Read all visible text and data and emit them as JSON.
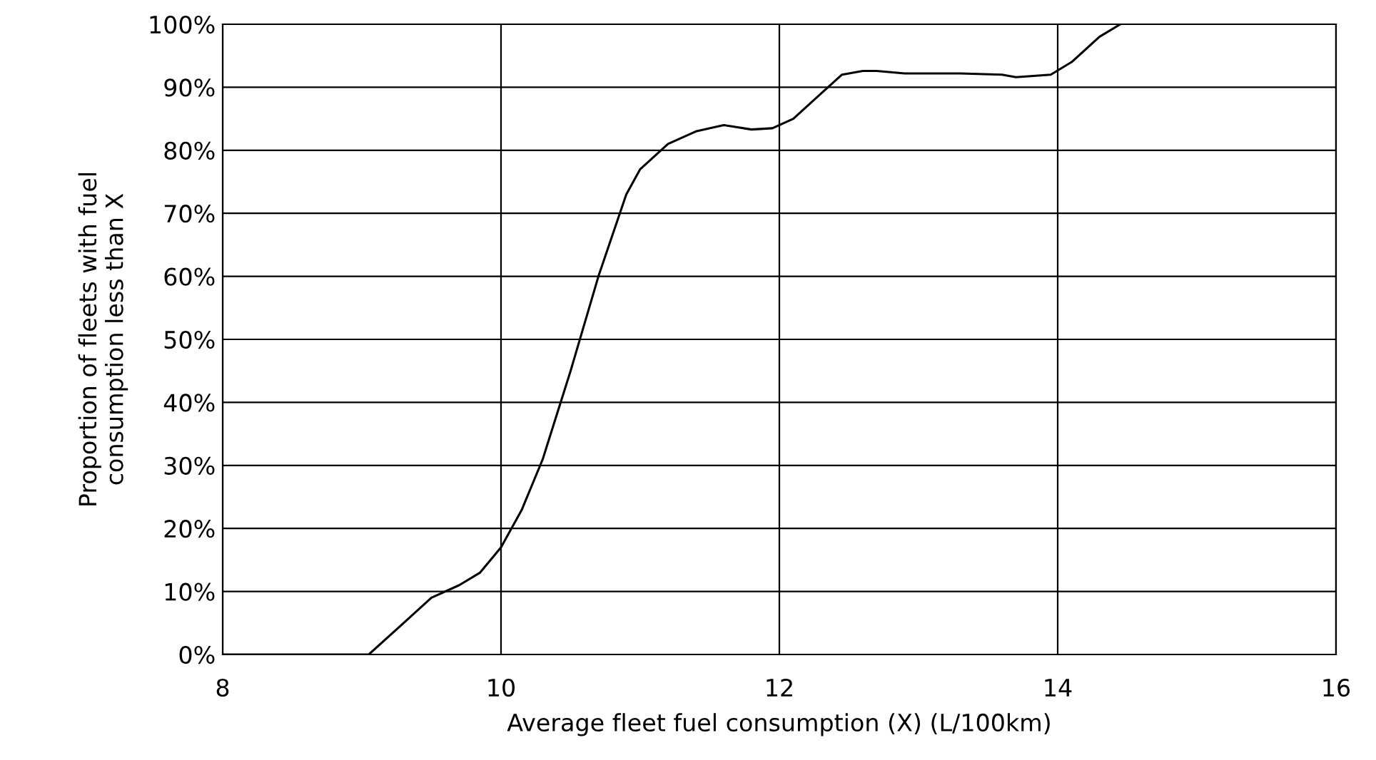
{
  "chart_data": {
    "type": "line",
    "xlabel": "Average fleet fuel consumption (X) (L/100km)",
    "ylabel": "Proportion of fleets with fuel\nconsumption less than X",
    "series": [
      {
        "color": "#000000",
        "x": [
          8,
          9.05,
          9.3,
          9.5,
          9.7,
          9.85,
          10,
          10.15,
          10.3,
          10.5,
          10.7,
          10.9,
          11.0,
          11.2,
          11.4,
          11.6,
          11.8,
          11.95,
          12.1,
          12.3,
          12.45,
          12.6,
          12.7,
          12.9,
          13.3,
          13.6,
          13.7,
          13.95,
          14.1,
          14.3,
          14.45
        ],
        "values": [
          0,
          0,
          5,
          9,
          11,
          13,
          17,
          23,
          31,
          45,
          60,
          73,
          77,
          81,
          83,
          84,
          83.3,
          83.5,
          85,
          89,
          92,
          92.6,
          92.6,
          92.2,
          92.2,
          92,
          91.6,
          92,
          94,
          98,
          100
        ]
      }
    ],
    "xlim": [
      8,
      16
    ],
    "xticks": [
      8,
      10,
      12,
      14,
      16
    ],
    "ylim": [
      0,
      100
    ],
    "yticks": [
      {
        "value": 0,
        "label": "0%"
      },
      {
        "value": 10,
        "label": "10%"
      },
      {
        "value": 20,
        "label": "20%"
      },
      {
        "value": 30,
        "label": "30%"
      },
      {
        "value": 40,
        "label": "40%"
      },
      {
        "value": 50,
        "label": "50%"
      },
      {
        "value": 60,
        "label": "60%"
      },
      {
        "value": 70,
        "label": "70%"
      },
      {
        "value": 80,
        "label": "80%"
      },
      {
        "value": 90,
        "label": "90%"
      },
      {
        "value": 100,
        "label": "100%"
      }
    ],
    "grid": true,
    "marker": "none",
    "line_style": "solid"
  }
}
